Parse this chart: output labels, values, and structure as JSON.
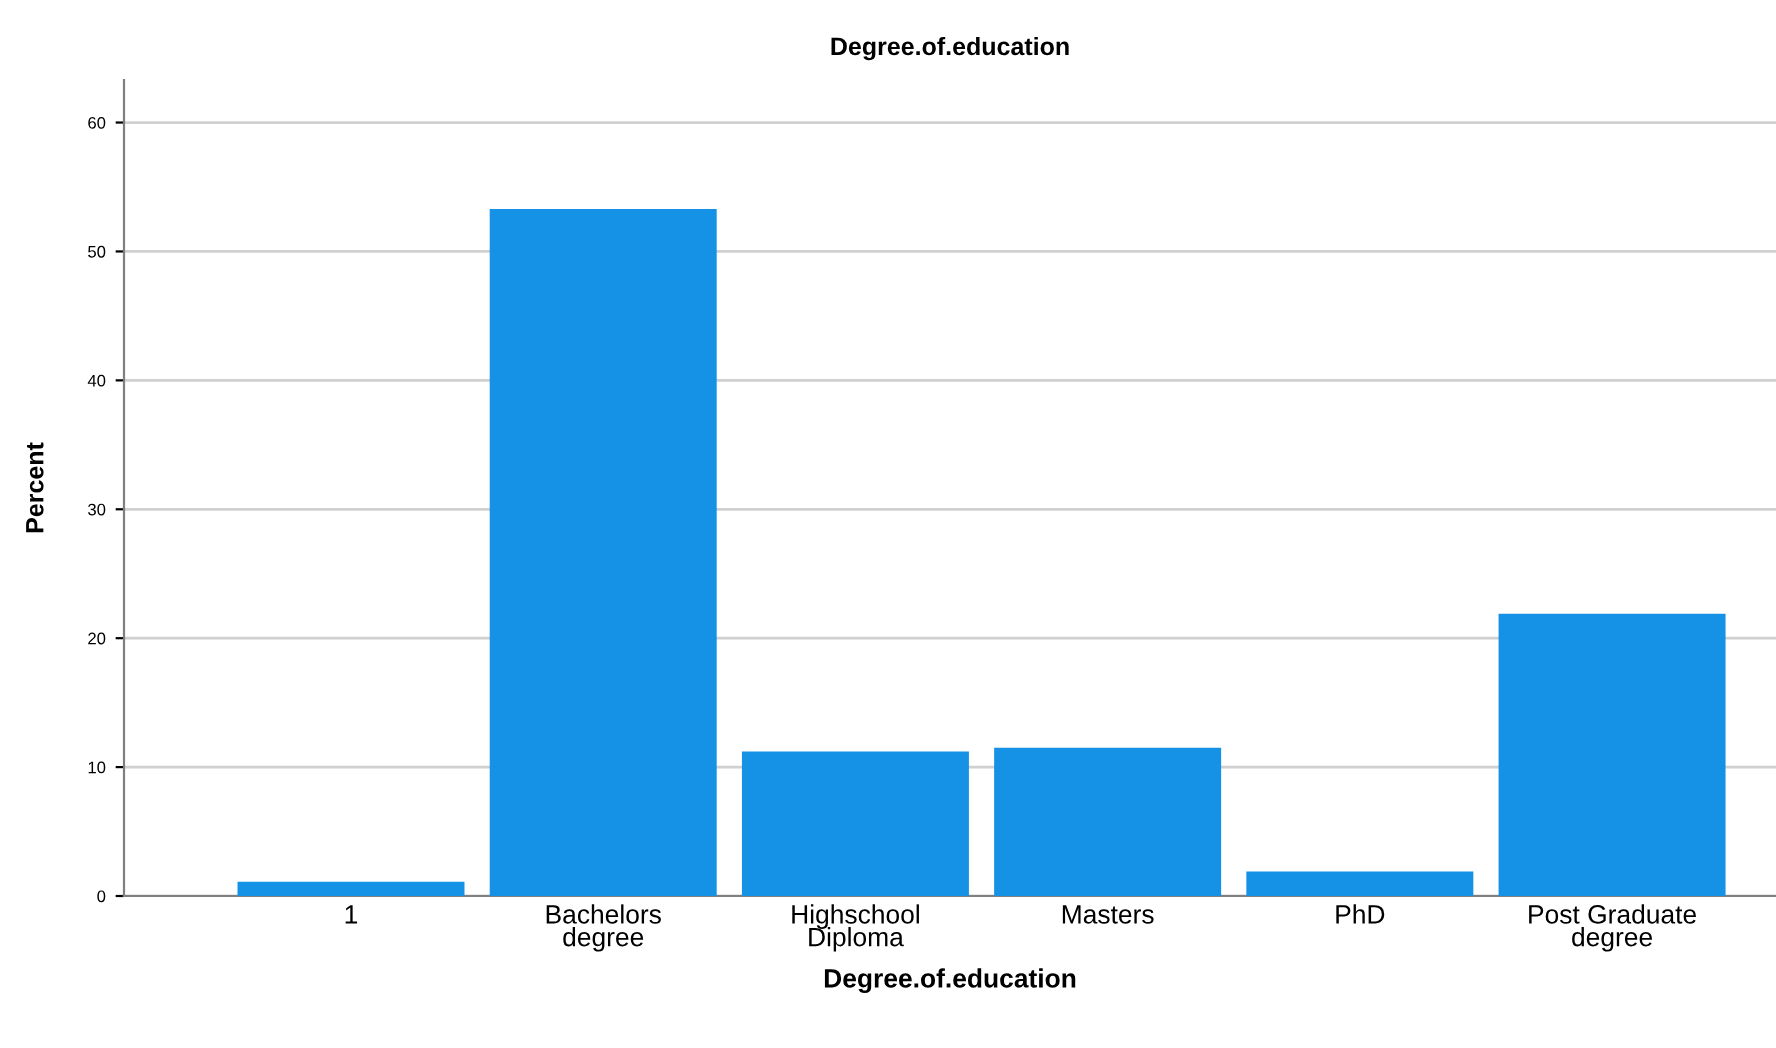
{
  "chart_data": {
    "type": "bar",
    "title": "Degree.of.education",
    "xlabel": "Degree.of.education",
    "ylabel": "Percent",
    "categories": [
      "1",
      "Bachelors\ndegree",
      "Highschool\nDiploma",
      "Masters",
      "PhD",
      "Post Graduate\ndegree"
    ],
    "values": [
      1.1,
      53.3,
      11.2,
      11.5,
      1.9,
      21.9
    ],
    "color": "#1591e6",
    "ylim": [
      0,
      63.3
    ],
    "yticks": [
      0,
      10,
      20,
      30,
      40,
      50,
      60
    ],
    "grid": "y"
  }
}
